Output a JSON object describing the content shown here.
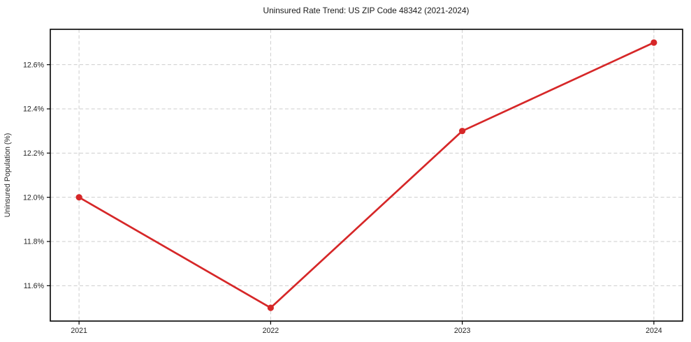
{
  "title": "Uninsured Rate Trend: US ZIP Code 48342 (2021-2024)",
  "chart_data": {
    "type": "line",
    "title": "Uninsured Rate Trend: US ZIP Code 48342 (2021-2024)",
    "xlabel": "",
    "ylabel": "Uninsured Population (%)",
    "x": [
      2021,
      2022,
      2023,
      2024
    ],
    "series": [
      {
        "name": "Uninsured rate",
        "values": [
          12.0,
          11.5,
          12.3,
          12.7
        ]
      }
    ],
    "xtick_labels": [
      "2021",
      "2022",
      "2023",
      "2024"
    ],
    "ytick_values": [
      11.6,
      11.8,
      12.0,
      12.2,
      12.4,
      12.6
    ],
    "ytick_labels": [
      "11.6%",
      "11.8%",
      "12.0%",
      "12.2%",
      "12.4%",
      "12.6%"
    ],
    "xlim": [
      2020.85,
      2024.15
    ],
    "ylim": [
      11.44,
      12.76
    ],
    "grid": true,
    "legend": "none",
    "line_color": "#d62728",
    "marker": "circle",
    "grid_color": "#cdcdcd",
    "frame_color": "#000000",
    "tick_color": "#262626",
    "background_color": "#ffffff"
  }
}
